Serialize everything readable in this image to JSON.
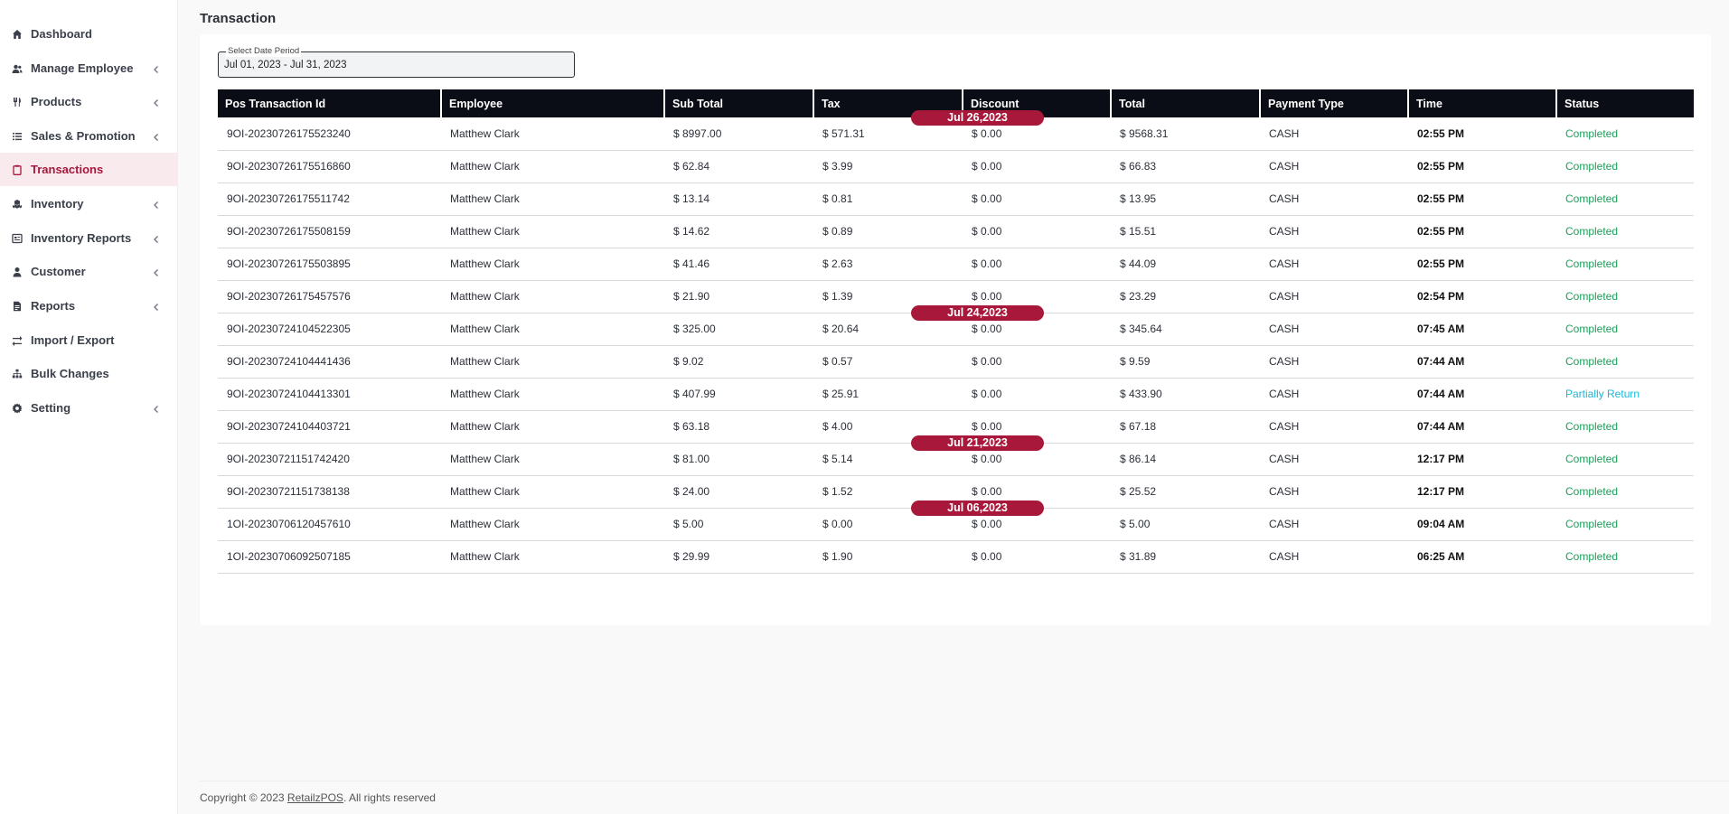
{
  "sidebar": {
    "items": [
      {
        "label": "Dashboard",
        "icon": "home-icon",
        "chevron": false,
        "active": false
      },
      {
        "label": "Manage Employee",
        "icon": "users-icon",
        "chevron": true,
        "active": false
      },
      {
        "label": "Products",
        "icon": "utensils-icon",
        "chevron": true,
        "active": false
      },
      {
        "label": "Sales & Promotion",
        "icon": "list-icon",
        "chevron": true,
        "active": false
      },
      {
        "label": "Transactions",
        "icon": "clipboard-icon",
        "chevron": false,
        "active": true
      },
      {
        "label": "Inventory",
        "icon": "cubes-icon",
        "chevron": true,
        "active": false
      },
      {
        "label": "Inventory Reports",
        "icon": "report-icon",
        "chevron": true,
        "active": false
      },
      {
        "label": "Customer",
        "icon": "user-icon",
        "chevron": true,
        "active": false
      },
      {
        "label": "Reports",
        "icon": "file-icon",
        "chevron": true,
        "active": false
      },
      {
        "label": "Import / Export",
        "icon": "exchange-icon",
        "chevron": false,
        "active": false
      },
      {
        "label": "Bulk Changes",
        "icon": "sitemap-icon",
        "chevron": false,
        "active": false
      },
      {
        "label": "Setting",
        "icon": "gear-icon",
        "chevron": true,
        "active": false
      }
    ]
  },
  "page": {
    "title": "Transaction"
  },
  "date_filter": {
    "legend": "Select Date Period",
    "value": "Jul 01, 2023 - Jul 31, 2023"
  },
  "table": {
    "headers": [
      "Pos Transaction Id",
      "Employee",
      "Sub Total",
      "Tax",
      "Discount",
      "Total",
      "Payment Type",
      "Time",
      "Status"
    ],
    "rows": [
      {
        "id": "9OI-20230726175523240",
        "employee": "Matthew Clark",
        "subtotal": "$ 8997.00",
        "tax": "$ 571.31",
        "discount": "$ 0.00",
        "total": "$ 9568.31",
        "payment": "CASH",
        "time": "02:55 PM",
        "status": "Completed"
      },
      {
        "id": "9OI-20230726175516860",
        "employee": "Matthew Clark",
        "subtotal": "$ 62.84",
        "tax": "$ 3.99",
        "discount": "$ 0.00",
        "total": "$ 66.83",
        "payment": "CASH",
        "time": "02:55 PM",
        "status": "Completed"
      },
      {
        "id": "9OI-20230726175511742",
        "employee": "Matthew Clark",
        "subtotal": "$ 13.14",
        "tax": "$ 0.81",
        "discount": "$ 0.00",
        "total": "$ 13.95",
        "payment": "CASH",
        "time": "02:55 PM",
        "status": "Completed"
      },
      {
        "id": "9OI-20230726175508159",
        "employee": "Matthew Clark",
        "subtotal": "$ 14.62",
        "tax": "$ 0.89",
        "discount": "$ 0.00",
        "total": "$ 15.51",
        "payment": "CASH",
        "time": "02:55 PM",
        "status": "Completed"
      },
      {
        "id": "9OI-20230726175503895",
        "employee": "Matthew Clark",
        "subtotal": "$ 41.46",
        "tax": "$ 2.63",
        "discount": "$ 0.00",
        "total": "$ 44.09",
        "payment": "CASH",
        "time": "02:55 PM",
        "status": "Completed"
      },
      {
        "id": "9OI-20230726175457576",
        "employee": "Matthew Clark",
        "subtotal": "$ 21.90",
        "tax": "$ 1.39",
        "discount": "$ 0.00",
        "total": "$ 23.29",
        "payment": "CASH",
        "time": "02:54 PM",
        "status": "Completed"
      },
      {
        "id": "9OI-20230724104522305",
        "employee": "Matthew Clark",
        "subtotal": "$ 325.00",
        "tax": "$ 20.64",
        "discount": "$ 0.00",
        "total": "$ 345.64",
        "payment": "CASH",
        "time": "07:45 AM",
        "status": "Completed"
      },
      {
        "id": "9OI-20230724104441436",
        "employee": "Matthew Clark",
        "subtotal": "$ 9.02",
        "tax": "$ 0.57",
        "discount": "$ 0.00",
        "total": "$ 9.59",
        "payment": "CASH",
        "time": "07:44 AM",
        "status": "Completed"
      },
      {
        "id": "9OI-20230724104413301",
        "employee": "Matthew Clark",
        "subtotal": "$ 407.99",
        "tax": "$ 25.91",
        "discount": "$ 0.00",
        "total": "$ 433.90",
        "payment": "CASH",
        "time": "07:44 AM",
        "status": "Partially Return"
      },
      {
        "id": "9OI-20230724104403721",
        "employee": "Matthew Clark",
        "subtotal": "$ 63.18",
        "tax": "$ 4.00",
        "discount": "$ 0.00",
        "total": "$ 67.18",
        "payment": "CASH",
        "time": "07:44 AM",
        "status": "Completed"
      },
      {
        "id": "9OI-20230721151742420",
        "employee": "Matthew Clark",
        "subtotal": "$ 81.00",
        "tax": "$ 5.14",
        "discount": "$ 0.00",
        "total": "$ 86.14",
        "payment": "CASH",
        "time": "12:17 PM",
        "status": "Completed"
      },
      {
        "id": "9OI-20230721151738138",
        "employee": "Matthew Clark",
        "subtotal": "$ 24.00",
        "tax": "$ 1.52",
        "discount": "$ 0.00",
        "total": "$ 25.52",
        "payment": "CASH",
        "time": "12:17 PM",
        "status": "Completed"
      },
      {
        "id": "1OI-20230706120457610",
        "employee": "Matthew Clark",
        "subtotal": "$ 5.00",
        "tax": "$ 0.00",
        "discount": "$ 0.00",
        "total": "$ 5.00",
        "payment": "CASH",
        "time": "09:04 AM",
        "status": "Completed"
      },
      {
        "id": "1OI-20230706092507185",
        "employee": "Matthew Clark",
        "subtotal": "$ 29.99",
        "tax": "$ 1.90",
        "discount": "$ 0.00",
        "total": "$ 31.89",
        "payment": "CASH",
        "time": "06:25 AM",
        "status": "Completed"
      }
    ],
    "date_groups": [
      {
        "label": "Jul 26,2023",
        "row": 0
      },
      {
        "label": "Jul 24,2023",
        "row": 6
      },
      {
        "label": "Jul 21,2023",
        "row": 10
      },
      {
        "label": "Jul 06,2023",
        "row": 12
      }
    ]
  },
  "footer": {
    "prefix": "Copyright © 2023 ",
    "brand": "RetailzPOS",
    "suffix": ". All rights reserved"
  },
  "colors": {
    "accent": "#a8183a",
    "completed": "#1e9e5a",
    "partial": "#1ab7d9",
    "header_bg": "#0b0d16"
  }
}
